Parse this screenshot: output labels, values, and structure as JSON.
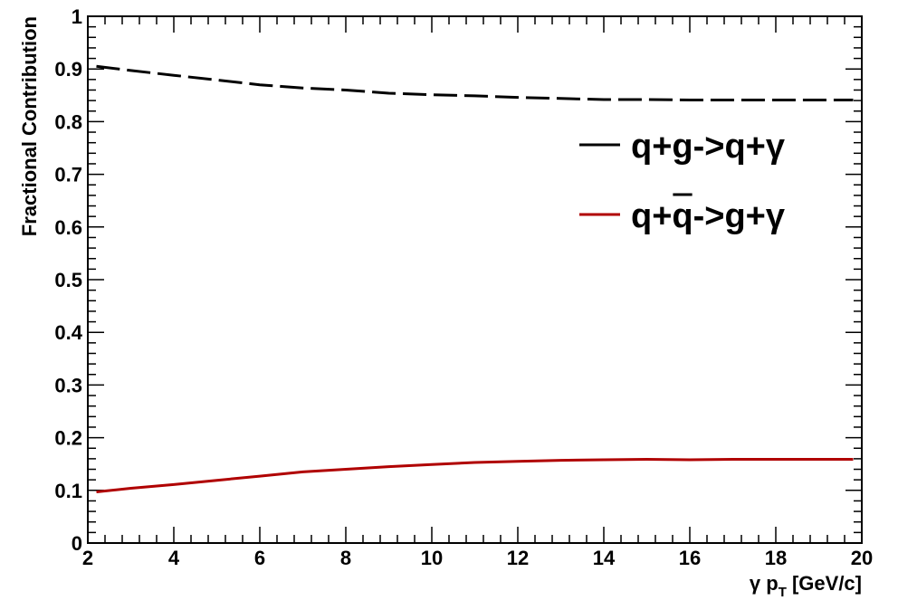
{
  "chart_data": {
    "type": "line",
    "title": "",
    "xlabel": "γ p_T [GeV/c]",
    "xlabel_parts": {
      "prefix": "γ p",
      "sub": "T",
      "suffix": " [GeV/c]"
    },
    "ylabel": "Fractional Contribution",
    "xlim": [
      2,
      20
    ],
    "ylim": [
      0,
      1
    ],
    "x_ticks": [
      2,
      4,
      6,
      8,
      10,
      12,
      14,
      16,
      18,
      20
    ],
    "x_tick_labels": [
      "2",
      "4",
      "6",
      "8",
      "10",
      "12",
      "14",
      "16",
      "18",
      "20"
    ],
    "y_ticks": [
      0,
      0.1,
      0.2,
      0.3,
      0.4,
      0.5,
      0.6,
      0.7,
      0.8,
      0.9,
      1
    ],
    "y_tick_labels": [
      "0",
      "0.1",
      "0.2",
      "0.3",
      "0.4",
      "0.5",
      "0.6",
      "0.7",
      "0.8",
      "0.9",
      "1"
    ],
    "grid": false,
    "legend_position": "right",
    "series": [
      {
        "name": "q+g->q+γ",
        "legend_parts": {
          "text": "q+g->q+γ",
          "overbar_char": null
        },
        "color": "#000000",
        "style": "dashed",
        "x": [
          2.2,
          3,
          4,
          5,
          6,
          7,
          8,
          9,
          10,
          11,
          12,
          13,
          14,
          15,
          16,
          17,
          18,
          19,
          19.8
        ],
        "y": [
          0.905,
          0.897,
          0.888,
          0.879,
          0.87,
          0.864,
          0.86,
          0.854,
          0.851,
          0.849,
          0.846,
          0.844,
          0.842,
          0.842,
          0.841,
          0.841,
          0.841,
          0.841,
          0.841
        ]
      },
      {
        "name": "q+q̄->g+γ",
        "legend_parts": {
          "text": "q+q->g+γ",
          "overbar_char": 2
        },
        "color": "#b00000",
        "style": "solid",
        "x": [
          2.2,
          3,
          4,
          5,
          6,
          7,
          8,
          9,
          10,
          11,
          12,
          13,
          14,
          15,
          16,
          17,
          18,
          19,
          19.8
        ],
        "y": [
          0.097,
          0.104,
          0.111,
          0.119,
          0.127,
          0.135,
          0.14,
          0.145,
          0.149,
          0.153,
          0.155,
          0.157,
          0.158,
          0.159,
          0.158,
          0.159,
          0.159,
          0.159,
          0.159
        ]
      }
    ]
  }
}
